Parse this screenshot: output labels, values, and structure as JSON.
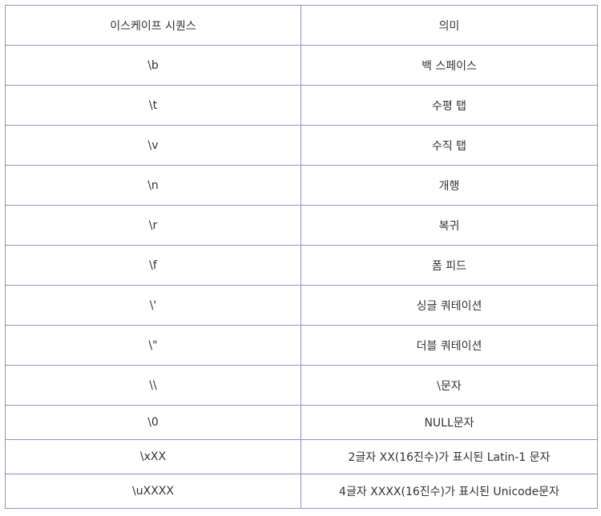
{
  "table": {
    "headers": [
      "이스케이프 시퀀스",
      "의미"
    ],
    "rows": [
      {
        "seq": "\\b",
        "meaning": "백 스페이스"
      },
      {
        "seq": "\\t",
        "meaning": "수평 탭"
      },
      {
        "seq": "\\v",
        "meaning": "수직 탭"
      },
      {
        "seq": "\\n",
        "meaning": "개행"
      },
      {
        "seq": "\\r",
        "meaning": "복귀"
      },
      {
        "seq": "\\f",
        "meaning": "폼 피드"
      },
      {
        "seq": "\\'",
        "meaning": "싱글 쿼테이션"
      },
      {
        "seq": "\\\"",
        "meaning": "더블 쿼테이션"
      },
      {
        "seq": "\\\\",
        "meaning": "\\문자"
      },
      {
        "seq": "\\0",
        "meaning": "NULL문자"
      },
      {
        "seq": "\\xXX",
        "meaning": "2글자 XX(16진수)가 표시된 Latin-1 문자"
      },
      {
        "seq": "\\uXXXX",
        "meaning": "4글자 XXXX(16진수)가 표시된 Unicode문자"
      }
    ]
  },
  "colors": {
    "border": "#8f8fc9",
    "text": "#333333"
  }
}
